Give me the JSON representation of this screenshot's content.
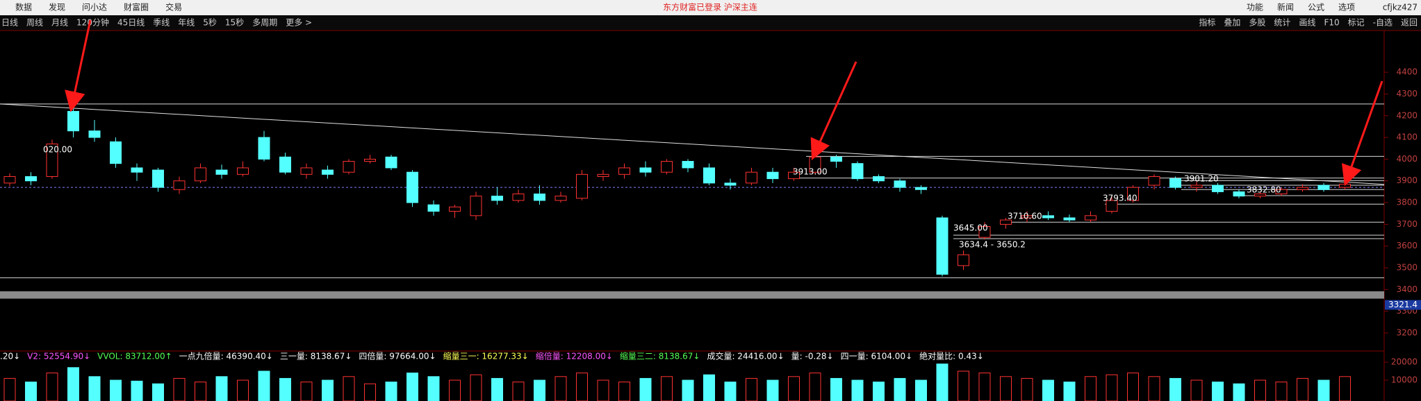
{
  "menu": [
    "数据",
    "发现",
    "问小达",
    "财富圈",
    "交易"
  ],
  "status": "东方财富已登录  沪深主连",
  "right_menu": [
    "功能",
    "新闻",
    "公式",
    "选项"
  ],
  "user": "cfjkz427",
  "toolbar_left": [
    "日线",
    "周线",
    "月线",
    "120分钟",
    "45日线",
    "季线",
    "年线",
    "5秒",
    "15秒",
    "多周期",
    "更多 >"
  ],
  "toolbar_right": [
    "指标",
    "叠加",
    "多股",
    "统计",
    "画线",
    "F10",
    "标记",
    "-自选",
    "返回"
  ],
  "chart_data": {
    "type": "candlestick",
    "ylim": [
      3136,
      4592
    ],
    "yticks": [
      3200,
      3300,
      3400,
      3500,
      3600,
      3700,
      3800,
      3900,
      4000,
      4100,
      4200,
      4300,
      4400
    ],
    "up_color": "#ff3232",
    "down_color": "#54ffff",
    "candles": [
      [
        3890,
        3920,
        3935,
        3875
      ],
      [
        3920,
        3900,
        3940,
        3880
      ],
      [
        3920,
        4070,
        4090,
        3910
      ],
      [
        4220,
        4130,
        4235,
        4100
      ],
      [
        4130,
        4100,
        4180,
        4080
      ],
      [
        4080,
        3980,
        4100,
        3960
      ],
      [
        3960,
        3940,
        3980,
        3900
      ],
      [
        3950,
        3870,
        3960,
        3850
      ],
      [
        3860,
        3900,
        3920,
        3840
      ],
      [
        3900,
        3960,
        3980,
        3890
      ],
      [
        3950,
        3930,
        3975,
        3910
      ],
      [
        3930,
        3960,
        3990,
        3920
      ],
      [
        4100,
        4000,
        4130,
        3990
      ],
      [
        4010,
        3940,
        4030,
        3930
      ],
      [
        3930,
        3960,
        3980,
        3910
      ],
      [
        3950,
        3930,
        3970,
        3910
      ],
      [
        3940,
        3990,
        4000,
        3930
      ],
      [
        3990,
        4000,
        4020,
        3980
      ],
      [
        4010,
        3960,
        4020,
        3950
      ],
      [
        3940,
        3800,
        3950,
        3780
      ],
      [
        3790,
        3760,
        3810,
        3740
      ],
      [
        3760,
        3780,
        3790,
        3730
      ],
      [
        3740,
        3830,
        3850,
        3720
      ],
      [
        3830,
        3810,
        3870,
        3790
      ],
      [
        3810,
        3840,
        3860,
        3800
      ],
      [
        3840,
        3810,
        3880,
        3790
      ],
      [
        3810,
        3830,
        3850,
        3800
      ],
      [
        3820,
        3930,
        3950,
        3810
      ],
      [
        3920,
        3930,
        3950,
        3900
      ],
      [
        3930,
        3960,
        3980,
        3910
      ],
      [
        3960,
        3940,
        3990,
        3920
      ],
      [
        3940,
        3990,
        4000,
        3930
      ],
      [
        3990,
        3960,
        4000,
        3940
      ],
      [
        3960,
        3890,
        3980,
        3880
      ],
      [
        3890,
        3880,
        3910,
        3860
      ],
      [
        3890,
        3940,
        3960,
        3880
      ],
      [
        3940,
        3910,
        3960,
        3890
      ],
      [
        3910,
        3940,
        3960,
        3900
      ],
      [
        3940,
        4010,
        4020,
        3930
      ],
      [
        4010,
        3990,
        4020,
        3960
      ],
      [
        3980,
        3910,
        3990,
        3900
      ],
      [
        3920,
        3900,
        3930,
        3890
      ],
      [
        3900,
        3870,
        3910,
        3850
      ],
      [
        3870,
        3860,
        3880,
        3840
      ],
      [
        3730,
        3470,
        3740,
        3460
      ],
      [
        3510,
        3560,
        3580,
        3490
      ],
      [
        3640,
        3690,
        3710,
        3630
      ],
      [
        3700,
        3720,
        3730,
        3680
      ],
      [
        3730,
        3740,
        3760,
        3710
      ],
      [
        3740,
        3730,
        3760,
        3720
      ],
      [
        3730,
        3720,
        3745,
        3710
      ],
      [
        3720,
        3740,
        3760,
        3710
      ],
      [
        3760,
        3810,
        3830,
        3750
      ],
      [
        3810,
        3870,
        3880,
        3800
      ],
      [
        3880,
        3920,
        3930,
        3860
      ],
      [
        3910,
        3870,
        3920,
        3860
      ],
      [
        3870,
        3880,
        3900,
        3850
      ],
      [
        3880,
        3850,
        3890,
        3840
      ],
      [
        3850,
        3830,
        3860,
        3820
      ],
      [
        3830,
        3840,
        3850,
        3820
      ],
      [
        3840,
        3860,
        3870,
        3830
      ],
      [
        3860,
        3870,
        3885,
        3850
      ],
      [
        3880,
        3860,
        3890,
        3850
      ],
      [
        3870,
        3885,
        3895,
        3860
      ]
    ],
    "levels": [
      4254,
      4013,
      3913,
      3901,
      3880,
      3860,
      3832,
      3793,
      3710,
      3650,
      3634,
      3454
    ],
    "dashed_level": 3870,
    "trend_line": [
      4254,
      3884
    ],
    "band": [
      3358,
      3392
    ],
    "band_label": "3321.4",
    "annotations": [
      "020.00",
      "3913.00",
      "3645.00",
      "3634.4 - 3650.2",
      "3710.60",
      "3793.40",
      "3901.20",
      "3832.80"
    ],
    "volume": {
      "ylim": [
        0,
        25000
      ],
      "yticks": [
        10000,
        20000
      ],
      "values": [
        11000,
        9000,
        14000,
        17000,
        12000,
        10000,
        9500,
        8000,
        11000,
        9000,
        12000,
        10000,
        15000,
        11000,
        9000,
        10000,
        12000,
        8000,
        9000,
        14000,
        12000,
        10000,
        13000,
        11000,
        9000,
        10000,
        12000,
        14000,
        10000,
        9000,
        11000,
        12000,
        10000,
        13000,
        9000,
        11000,
        10000,
        12000,
        14000,
        11000,
        10000,
        9000,
        11000,
        10000,
        19000,
        15000,
        14000,
        12000,
        11000,
        10000,
        9000,
        12000,
        13000,
        14000,
        12000,
        11000,
        10000,
        9000,
        8000,
        10000,
        9000,
        11000,
        10000,
        12000
      ]
    },
    "indicators": [
      {
        "text": ".20↓",
        "color": "#ffffff"
      },
      {
        "text": "V2: 52554.90↓",
        "color": "#ff55ff"
      },
      {
        "text": "VVOL: 83712.00↑",
        "color": "#55ff55"
      },
      {
        "text": "一点九倍量: 46390.40↓",
        "color": "#ffffff"
      },
      {
        "text": "三一量: 8138.67↓",
        "color": "#ffffff"
      },
      {
        "text": "四倍量: 97664.00↓",
        "color": "#ffffff"
      },
      {
        "text": "缩量三一: 16277.33↓",
        "color": "#ffff55"
      },
      {
        "text": "缩倍量: 12208.00↓",
        "color": "#ff55ff"
      },
      {
        "text": "缩量三二: 8138.67↓",
        "color": "#55ff55"
      },
      {
        "text": "成交量: 24416.00↓",
        "color": "#ffffff"
      },
      {
        "text": "量: -0.28↓",
        "color": "#ffffff"
      },
      {
        "text": "四一量: 6104.00↓",
        "color": "#ffffff"
      },
      {
        "text": "绝对量比: 0.43↓",
        "color": "#ffffff"
      }
    ]
  }
}
